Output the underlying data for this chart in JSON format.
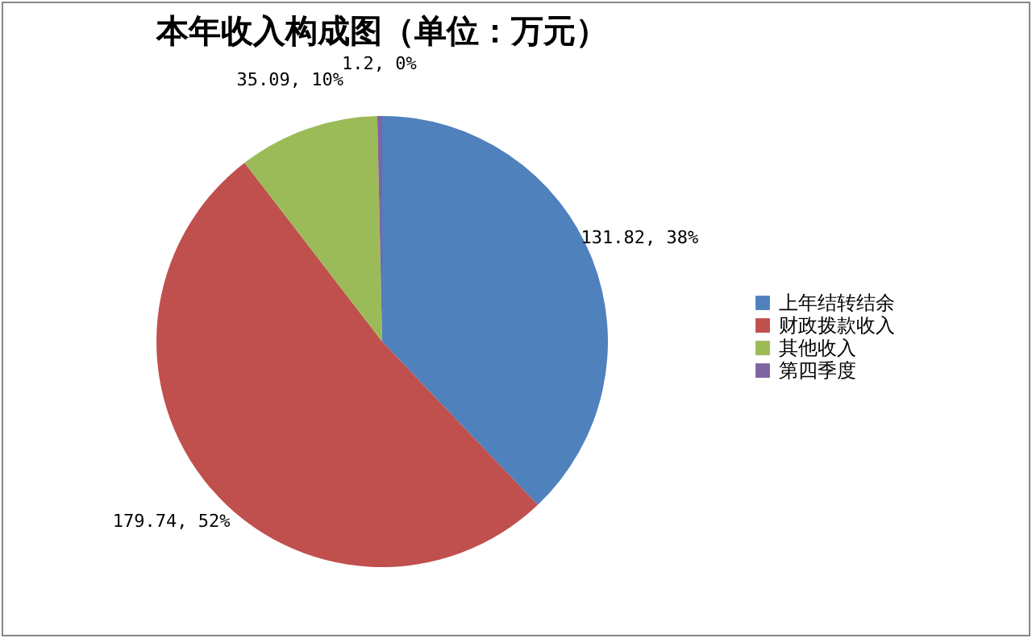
{
  "chart_data": {
    "type": "pie",
    "title": "本年收入构成图（单位：万元）",
    "categories": [
      "上年结转结余",
      "财政拨款收入",
      "其他收入",
      "第四季度"
    ],
    "values": [
      131.82,
      179.74,
      35.09,
      1.2
    ],
    "colors": [
      "#4f81bd",
      "#c0504d",
      "#9bbb59",
      "#8064a2"
    ],
    "value_labels": [
      "131.82, 38%",
      "179.74, 52%",
      "35.09, 10%",
      "1.2, 0%"
    ],
    "legend": "right"
  }
}
